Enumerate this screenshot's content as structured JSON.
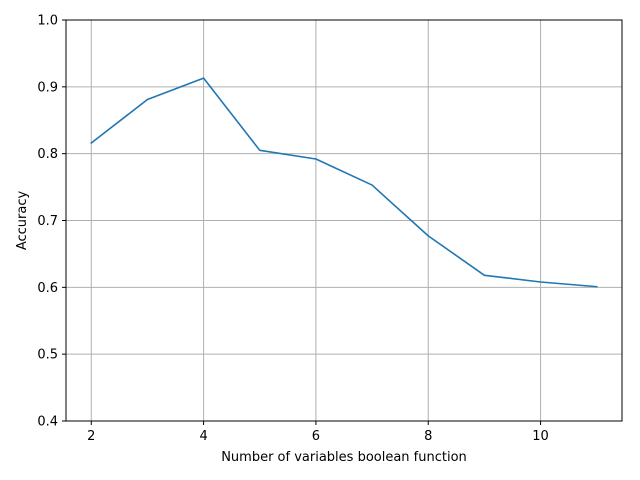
{
  "chart_data": {
    "type": "line",
    "title": "",
    "xlabel": "Number of variables boolean function",
    "ylabel": "Accuracy",
    "xlim": [
      1.55,
      11.45
    ],
    "ylim": [
      0.4,
      1.0
    ],
    "x_ticks": [
      2,
      4,
      6,
      8,
      10
    ],
    "y_ticks": [
      0.4,
      0.5,
      0.6,
      0.7,
      0.8,
      0.9,
      1.0
    ],
    "x_tick_labels": [
      "2",
      "4",
      "6",
      "8",
      "10"
    ],
    "y_tick_labels": [
      "0.4",
      "0.5",
      "0.6",
      "0.7",
      "0.8",
      "0.9",
      "1.0"
    ],
    "grid": true,
    "series": [
      {
        "color": "#1f77b4",
        "x": [
          2,
          3,
          4,
          5,
          6,
          7,
          8,
          9,
          10,
          11
        ],
        "y": [
          0.816,
          0.881,
          0.913,
          0.805,
          0.792,
          0.753,
          0.677,
          0.618,
          0.608,
          0.601
        ]
      }
    ]
  }
}
